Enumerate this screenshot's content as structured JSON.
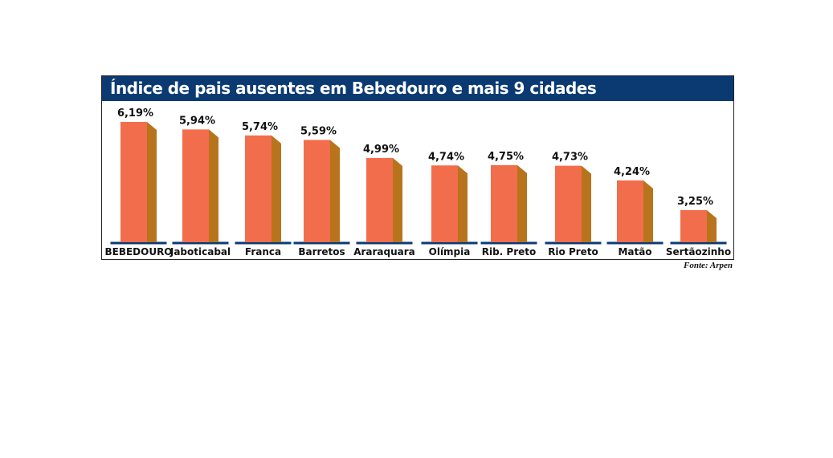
{
  "chart_data": {
    "type": "bar",
    "title": "Índice de pais ausentes em Bebedouro e mais 9 cidades",
    "categories": [
      "BEBEDOURO",
      "Jaboticabal",
      "Franca",
      "Barretos",
      "Araraquara",
      "Olímpia",
      "Rib. Preto",
      "Rio Preto",
      "Matão",
      "Sertãozinho"
    ],
    "values": [
      6.19,
      5.94,
      5.74,
      5.59,
      4.99,
      4.74,
      4.75,
      4.73,
      4.24,
      3.25
    ],
    "value_labels": [
      "6,19%",
      "5,94%",
      "5,74%",
      "5,59%",
      "4,99%",
      "4,74%",
      "4,75%",
      "4,73%",
      "4,24%",
      "3,25%"
    ],
    "xlabel": "",
    "ylabel": "",
    "ylim": [
      2.18,
      6.5
    ],
    "grid": false,
    "source": "Fonte: Arpen",
    "colors": {
      "bar_front": "#f26d4b",
      "bar_side": "#b8741c",
      "title_bg": "#0b3a73",
      "baseline": "#0b3a73"
    }
  }
}
